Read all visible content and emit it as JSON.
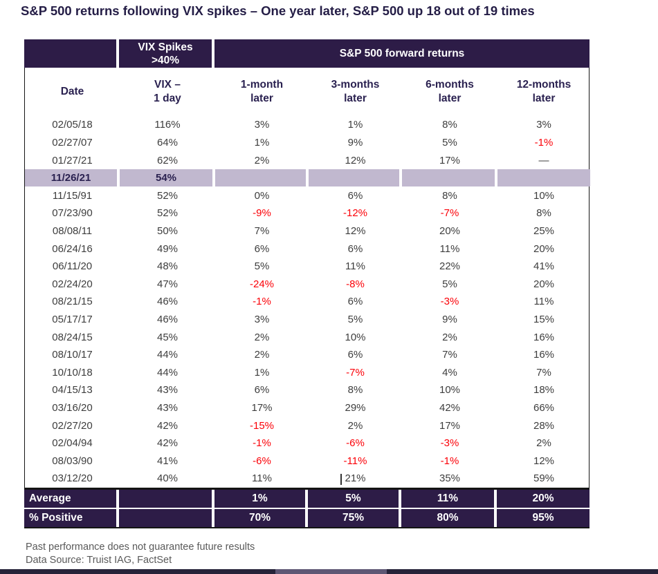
{
  "colors": {
    "dark_purple": "#2d1c47",
    "highlight_row": "#c1b8cf",
    "header_text": "#2a2150",
    "title_text": "#241d46",
    "data_text": "#3d3d3d",
    "negative_red": "#fb0007",
    "footnote_gray": "#595959",
    "border_black": "#141414",
    "bottom_bar": "#262339",
    "bottom_bar_light": "#5e5774"
  },
  "chart_data": {
    "type": "table",
    "title": "S&P 500 returns following VIX spikes – One year later, S&P 500 up 18 out of 19 times",
    "header_band": {
      "vix_spikes": [
        "VIX Spikes",
        ">40%"
      ],
      "forward_returns": "S&P 500 forward returns"
    },
    "columns": [
      [
        "Date"
      ],
      [
        "VIX –",
        "1 day"
      ],
      [
        "1-month",
        "later"
      ],
      [
        "3-months",
        "later"
      ],
      [
        "6-months",
        "later"
      ],
      [
        "12-months",
        "later"
      ]
    ],
    "rows": [
      {
        "date": "02/05/18",
        "vix": "116%",
        "m1": "3%",
        "m3": "1%",
        "m6": "8%",
        "m12": "3%"
      },
      {
        "date": "02/27/07",
        "vix": "64%",
        "m1": "1%",
        "m3": "9%",
        "m6": "5%",
        "m12": "-1%"
      },
      {
        "date": "01/27/21",
        "vix": "62%",
        "m1": "2%",
        "m3": "12%",
        "m6": "17%",
        "m12": "—"
      },
      {
        "date": "11/26/21",
        "vix": "54%",
        "m1": "",
        "m3": "",
        "m6": "",
        "m12": "",
        "highlight": true
      },
      {
        "date": "11/15/91",
        "vix": "52%",
        "m1": "0%",
        "m3": "6%",
        "m6": "8%",
        "m12": "10%"
      },
      {
        "date": "07/23/90",
        "vix": "52%",
        "m1": "-9%",
        "m3": "-12%",
        "m6": "-7%",
        "m12": "8%"
      },
      {
        "date": "08/08/11",
        "vix": "50%",
        "m1": "7%",
        "m3": "12%",
        "m6": "20%",
        "m12": "25%"
      },
      {
        "date": "06/24/16",
        "vix": "49%",
        "m1": "6%",
        "m3": "6%",
        "m6": "11%",
        "m12": "20%"
      },
      {
        "date": "06/11/20",
        "vix": "48%",
        "m1": "5%",
        "m3": "11%",
        "m6": "22%",
        "m12": "41%"
      },
      {
        "date": "02/24/20",
        "vix": "47%",
        "m1": "-24%",
        "m3": "-8%",
        "m6": "5%",
        "m12": "20%"
      },
      {
        "date": "08/21/15",
        "vix": "46%",
        "m1": "-1%",
        "m3": "6%",
        "m6": "-3%",
        "m12": "11%"
      },
      {
        "date": "05/17/17",
        "vix": "46%",
        "m1": "3%",
        "m3": "5%",
        "m6": "9%",
        "m12": "15%"
      },
      {
        "date": "08/24/15",
        "vix": "45%",
        "m1": "2%",
        "m3": "10%",
        "m6": "2%",
        "m12": "16%"
      },
      {
        "date": "08/10/17",
        "vix": "44%",
        "m1": "2%",
        "m3": "6%",
        "m6": "7%",
        "m12": "16%"
      },
      {
        "date": "10/10/18",
        "vix": "44%",
        "m1": "1%",
        "m3": "-7%",
        "m6": "4%",
        "m12": "7%"
      },
      {
        "date": "04/15/13",
        "vix": "43%",
        "m1": "6%",
        "m3": "8%",
        "m6": "10%",
        "m12": "18%"
      },
      {
        "date": "03/16/20",
        "vix": "43%",
        "m1": "17%",
        "m3": "29%",
        "m6": "42%",
        "m12": "66%"
      },
      {
        "date": "02/27/20",
        "vix": "42%",
        "m1": "-15%",
        "m3": "2%",
        "m6": "17%",
        "m12": "28%"
      },
      {
        "date": "02/04/94",
        "vix": "42%",
        "m1": "-1%",
        "m3": "-6%",
        "m6": "-3%",
        "m12": "2%"
      },
      {
        "date": "08/03/90",
        "vix": "41%",
        "m1": "-6%",
        "m3": "-11%",
        "m6": "-1%",
        "m12": "12%"
      },
      {
        "date": "03/12/20",
        "vix": "40%",
        "m1": "11%",
        "m3": "21%",
        "m6": "35%",
        "m12": "59%"
      }
    ],
    "highlighted_row_date": "11/26/21",
    "summary": [
      {
        "label": "Average",
        "m1": "1%",
        "m3": "5%",
        "m6": "11%",
        "m12": "20%"
      },
      {
        "label": "% Positive",
        "m1": "70%",
        "m3": "75%",
        "m6": "80%",
        "m12": "95%"
      }
    ],
    "footnotes": [
      "Past performance does not guarantee future results",
      "Data Source: Truist IAG, FactSet"
    ]
  }
}
